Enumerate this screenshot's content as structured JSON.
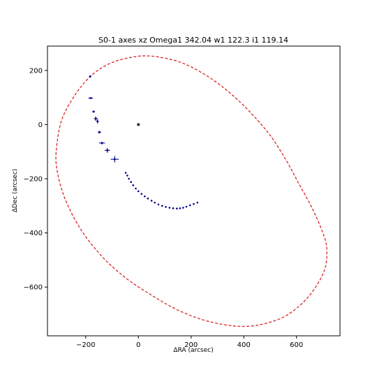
{
  "chart_data": {
    "type": "scatter",
    "title": "S0-1 axes xz Omega1 342.04 w1 122.3 i1 119.14",
    "xlabel": "ΔRA (arcsec)",
    "ylabel": "ΔDec (arcsec)",
    "xlim": [
      -345,
      765
    ],
    "ylim": [
      -780,
      290
    ],
    "xticks": [
      -200,
      0,
      200,
      400,
      600
    ],
    "yticks": [
      200,
      0,
      -200,
      -400,
      -600
    ],
    "xtick_labels": [
      "−200",
      "0",
      "200",
      "400",
      "600"
    ],
    "ytick_labels": [
      "200",
      "0",
      "−200",
      "−400",
      "−600"
    ],
    "grid": false,
    "colors": {
      "orbit": "#d62728",
      "data": "#00008b",
      "center": "#000000",
      "axes": "#000000"
    },
    "center_marker": {
      "x": 0,
      "y": 0,
      "marker": "star"
    },
    "orbit_ellipse": {
      "style": "dashed",
      "points": [
        [
          50,
          253
        ],
        [
          160,
          230
        ],
        [
          260,
          180
        ],
        [
          350,
          115
        ],
        [
          430,
          40
        ],
        [
          500,
          -40
        ],
        [
          560,
          -130
        ],
        [
          610,
          -220
        ],
        [
          660,
          -310
        ],
        [
          700,
          -400
        ],
        [
          715,
          -460
        ],
        [
          705,
          -540
        ],
        [
          650,
          -630
        ],
        [
          570,
          -700
        ],
        [
          480,
          -735
        ],
        [
          380,
          -745
        ],
        [
          260,
          -725
        ],
        [
          150,
          -685
        ],
        [
          50,
          -630
        ],
        [
          -50,
          -565
        ],
        [
          -140,
          -485
        ],
        [
          -220,
          -385
        ],
        [
          -280,
          -270
        ],
        [
          -310,
          -160
        ],
        [
          -310,
          -80
        ],
        [
          -290,
          20
        ],
        [
          -240,
          110
        ],
        [
          -180,
          180
        ],
        [
          -110,
          225
        ],
        [
          -30,
          248
        ],
        [
          50,
          253
        ]
      ]
    },
    "series": [
      {
        "marker": "cross-errorbar",
        "points": [
          {
            "x": -183,
            "y": 178,
            "xerr": 4,
            "yerr": 4
          },
          {
            "x": -181,
            "y": 98,
            "xerr": 9,
            "yerr": 2
          },
          {
            "x": -170,
            "y": 48,
            "xerr": 5,
            "yerr": 4
          },
          {
            "x": -162,
            "y": 22,
            "xerr": 7,
            "yerr": 8
          },
          {
            "x": -155,
            "y": 12,
            "xerr": 4,
            "yerr": 8
          },
          {
            "x": -148,
            "y": -28,
            "xerr": 6,
            "yerr": 5
          },
          {
            "x": -138,
            "y": -68,
            "xerr": 11,
            "yerr": 5
          },
          {
            "x": -118,
            "y": -95,
            "xerr": 10,
            "yerr": 9
          },
          {
            "x": -90,
            "y": -128,
            "xerr": 15,
            "yerr": 12
          }
        ]
      },
      {
        "marker": "point",
        "points": [
          {
            "x": -48,
            "y": -178
          },
          {
            "x": -42,
            "y": -188
          },
          {
            "x": -36,
            "y": -200
          },
          {
            "x": -28,
            "y": -212
          },
          {
            "x": -20,
            "y": -224
          },
          {
            "x": -10,
            "y": -236
          },
          {
            "x": 0,
            "y": -246
          },
          {
            "x": 12,
            "y": -256
          },
          {
            "x": 24,
            "y": -265
          },
          {
            "x": 36,
            "y": -273
          },
          {
            "x": 50,
            "y": -281
          },
          {
            "x": 62,
            "y": -288
          },
          {
            "x": 76,
            "y": -295
          },
          {
            "x": 90,
            "y": -300
          },
          {
            "x": 104,
            "y": -304
          },
          {
            "x": 118,
            "y": -307
          },
          {
            "x": 132,
            "y": -309
          },
          {
            "x": 146,
            "y": -310
          },
          {
            "x": 158,
            "y": -309
          },
          {
            "x": 170,
            "y": -307
          },
          {
            "x": 182,
            "y": -303
          },
          {
            "x": 196,
            "y": -298
          },
          {
            "x": 210,
            "y": -293
          },
          {
            "x": 224,
            "y": -288
          }
        ]
      }
    ]
  }
}
